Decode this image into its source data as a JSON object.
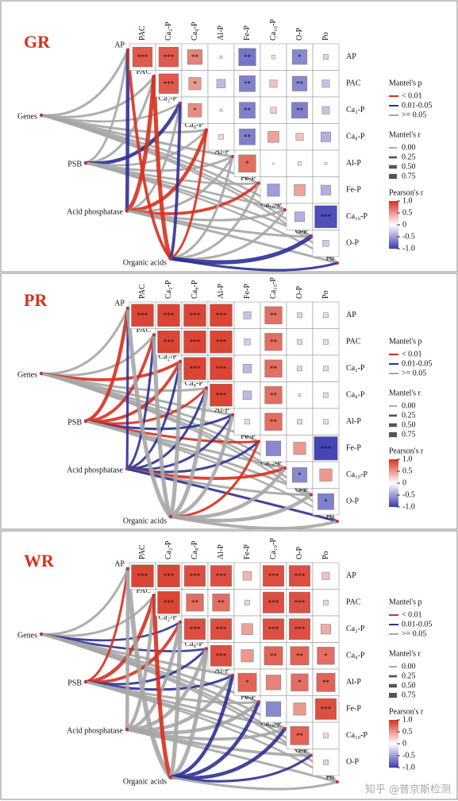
{
  "chart_data": [
    {
      "type": "mantel-heatmap",
      "title": "GR",
      "columns": [
        "PAC",
        "Ca₂-P",
        "Ca₈-P",
        "Al-P",
        "Fe-P",
        "Ca₁₀-P",
        "O-P",
        "Po"
      ],
      "rows": [
        "AP",
        "PAC",
        "Ca₂-P",
        "Ca₈-P",
        "Al-P",
        "Fe-P",
        "Ca₁₀-P",
        "O-P"
      ],
      "values": [
        [
          0.8,
          0.8,
          0.6,
          -0.1,
          -0.7,
          0.15,
          -0.6,
          -0.2
        ],
        [
          null,
          0.8,
          0.5,
          -0.35,
          -0.65,
          0.3,
          -0.6,
          -0.3
        ],
        [
          null,
          null,
          0.55,
          -0.1,
          -0.65,
          0.25,
          -0.65,
          -0.3
        ],
        [
          null,
          null,
          null,
          0.2,
          -0.65,
          0.45,
          0.3,
          -0.4
        ],
        [
          null,
          null,
          null,
          null,
          0.7,
          0.05,
          0.15,
          0.1
        ],
        [
          null,
          null,
          null,
          null,
          null,
          -0.5,
          0.45,
          -0.4
        ],
        [
          null,
          null,
          null,
          null,
          null,
          null,
          -0.4,
          -0.9
        ],
        [
          null,
          null,
          null,
          null,
          null,
          null,
          null,
          -0.25
        ]
      ],
      "stars": [
        [
          "***",
          "***",
          "**",
          null,
          "**",
          null,
          "*",
          null
        ],
        [
          null,
          "***",
          "*",
          null,
          "**",
          null,
          "**",
          null
        ],
        [
          null,
          null,
          "*",
          null,
          "**",
          null,
          "**",
          null
        ],
        [
          null,
          null,
          null,
          null,
          "**",
          null,
          null,
          null
        ],
        [
          null,
          null,
          null,
          null,
          "*",
          null,
          null,
          null
        ],
        [
          null,
          null,
          null,
          null,
          null,
          null,
          null,
          null
        ],
        [
          null,
          null,
          null,
          null,
          null,
          null,
          null,
          "***"
        ],
        [
          null,
          null,
          null,
          null,
          null,
          null,
          null,
          null
        ]
      ],
      "clim": [
        -1,
        1
      ],
      "colorbar_title": "Pearson's r",
      "colorbar_ticks": [
        {
          "value": 1,
          "label": "1.0"
        },
        0.5,
        0,
        -0.5,
        {
          "value": -1,
          "label": "-1.0"
        }
      ],
      "sources": [
        "Genes",
        "PSB",
        "Acid phosphatase",
        "Organic acids"
      ],
      "mantel_r": [
        [
          0.3,
          0.3,
          0.25,
          0.3,
          0.3,
          0.25,
          0.25,
          0.2,
          0.2
        ],
        [
          0.3,
          0.3,
          0.5,
          0.25,
          0.3,
          0.25,
          0.25,
          0.25,
          0.2
        ],
        [
          0.5,
          0.6,
          0.3,
          0.5,
          0.3,
          0.4,
          0.3,
          0.3,
          0.3
        ],
        [
          0.4,
          0.6,
          0.4,
          0.3,
          0.3,
          0.3,
          0.3,
          0.6,
          0.3
        ]
      ],
      "mantel_p": [
        [
          ">= 0.05",
          ">= 0.05",
          ">= 0.05",
          ">= 0.05",
          ">= 0.05",
          ">= 0.05",
          ">= 0.05",
          ">= 0.05",
          ">= 0.05"
        ],
        [
          ">= 0.05",
          ">= 0.05",
          "0.01-0.05",
          ">= 0.05",
          ">= 0.05",
          ">= 0.05",
          ">= 0.05",
          ">= 0.05",
          ">= 0.05"
        ],
        [
          "0.01-0.05",
          "< 0.01",
          ">= 0.05",
          "< 0.01",
          ">= 0.05",
          "< 0.01",
          ">= 0.05",
          ">= 0.05",
          ">= 0.05"
        ],
        [
          "< 0.01",
          "< 0.01",
          "0.01-0.05",
          "< 0.01",
          ">= 0.05",
          ">= 0.05",
          ">= 0.05",
          "0.01-0.05",
          "0.01-0.05"
        ]
      ],
      "p_legend": {
        "title": "Mantel's p",
        "entries": [
          {
            "label": "< 0.01",
            "color": "#d7301f"
          },
          {
            "label": "0.01-0.05",
            "color": "#2e3192"
          },
          {
            "label": ">= 0.05",
            "color": "#a6a6a6"
          }
        ]
      },
      "r_legend": {
        "title": "Mantel's r",
        "ticks": [
          {
            "value": 0,
            "label": "0.00"
          },
          0.25,
          {
            "value": 0.5,
            "label": "0.50"
          },
          0.75
        ]
      }
    },
    {
      "type": "mantel-heatmap",
      "title": "PR",
      "columns": [
        "PAC",
        "Ca₂-P",
        "Ca₈-P",
        "Al-P",
        "Fe-P",
        "Ca₁₀-P",
        "O-P",
        "Po"
      ],
      "rows": [
        "AP",
        "PAC",
        "Ca₂-P",
        "Ca₈-P",
        "Al-P",
        "Fe-P",
        "Ca₁₀-P",
        "O-P"
      ],
      "values": [
        [
          0.9,
          0.9,
          0.9,
          0.9,
          -0.3,
          0.7,
          -0.2,
          0.2
        ],
        [
          null,
          0.9,
          0.9,
          0.9,
          -0.25,
          0.7,
          -0.2,
          0.2
        ],
        [
          null,
          null,
          0.9,
          0.9,
          -0.35,
          0.7,
          -0.2,
          0.2
        ],
        [
          null,
          null,
          null,
          0.9,
          -0.35,
          0.7,
          -0.1,
          0.2
        ],
        [
          null,
          null,
          null,
          null,
          0.2,
          0.7,
          -0.2,
          0.2
        ],
        [
          null,
          null,
          null,
          null,
          null,
          -0.6,
          0.5,
          -0.95
        ],
        [
          null,
          null,
          null,
          null,
          null,
          null,
          -0.6,
          0.5
        ],
        [
          null,
          null,
          null,
          null,
          null,
          null,
          null,
          -0.65
        ]
      ],
      "stars": [
        [
          "***",
          "***",
          "***",
          "***",
          null,
          "**",
          null,
          null
        ],
        [
          null,
          "***",
          "***",
          "***",
          null,
          "**",
          null,
          null
        ],
        [
          null,
          null,
          "***",
          "***",
          null,
          "**",
          null,
          null
        ],
        [
          null,
          null,
          null,
          "***",
          null,
          "**",
          null,
          null
        ],
        [
          null,
          null,
          null,
          null,
          null,
          "**",
          null,
          null
        ],
        [
          null,
          null,
          null,
          null,
          null,
          null,
          null,
          "***"
        ],
        [
          null,
          null,
          null,
          null,
          null,
          null,
          "*",
          null
        ],
        [
          null,
          null,
          null,
          null,
          null,
          null,
          null,
          "*"
        ]
      ],
      "clim": [
        -1,
        1
      ],
      "colorbar_title": "Pearson's r",
      "colorbar_ticks": [
        {
          "value": 1,
          "label": "1.0"
        },
        0.5,
        0,
        -0.5,
        {
          "value": -1,
          "label": "-1.0"
        }
      ],
      "sources": [
        "Genes",
        "PSB",
        "Acid phosphatase",
        "Organic acids"
      ],
      "mantel_r": [
        [
          0.3,
          0.3,
          0.4,
          0.3,
          0.3,
          0.25,
          0.25,
          0.25,
          0.2
        ],
        [
          0.5,
          0.4,
          0.4,
          0.3,
          0.3,
          0.3,
          0.3,
          0.3,
          0.2
        ],
        [
          0.3,
          0.3,
          0.3,
          0.3,
          0.3,
          0.3,
          0.4,
          0.3,
          0.3
        ],
        [
          0.6,
          0.6,
          0.6,
          0.6,
          0.5,
          0.3,
          0.5,
          0.5,
          0.4
        ]
      ],
      "mantel_p": [
        [
          ">= 0.05",
          ">= 0.05",
          "< 0.01",
          ">= 0.05",
          ">= 0.05",
          ">= 0.05",
          ">= 0.05",
          ">= 0.05",
          ">= 0.05"
        ],
        [
          "< 0.01",
          "< 0.01",
          "< 0.01",
          "< 0.01",
          "0.01-0.05",
          "< 0.01",
          ">= 0.05",
          ">= 0.05",
          ">= 0.05"
        ],
        [
          "0.01-0.05",
          "0.01-0.05",
          "0.01-0.05",
          "0.01-0.05",
          "0.01-0.05",
          "0.01-0.05",
          "< 0.01",
          ">= 0.05",
          "0.01-0.05"
        ],
        [
          ">= 0.05",
          ">= 0.05",
          ">= 0.05",
          ">= 0.05",
          ">= 0.05",
          "< 0.01",
          ">= 0.05",
          ">= 0.05",
          ">= 0.05"
        ]
      ],
      "p_legend": {
        "title": "Mantel's p",
        "entries": [
          {
            "label": "< 0.01",
            "color": "#d7301f"
          },
          {
            "label": "0.01-0.05",
            "color": "#2e3192"
          },
          {
            "label": ">= 0.05",
            "color": "#a6a6a6"
          }
        ]
      },
      "r_legend": {
        "title": "Mantel's r",
        "ticks": [
          {
            "value": 0,
            "label": "0.00"
          },
          0.25,
          {
            "value": 0.5,
            "label": "0.50"
          },
          0.75
        ]
      }
    },
    {
      "type": "mantel-heatmap",
      "title": "WR",
      "columns": [
        "PAC",
        "Ca₂-P",
        "Ca₈-P",
        "Al-P",
        "Fe-P",
        "Ca₁₀-P",
        "O-P",
        "Po"
      ],
      "rows": [
        "AP",
        "PAC",
        "Ca₂-P",
        "Ca₈-P",
        "Al-P",
        "Fe-P",
        "Ca₁₀-P",
        "O-P"
      ],
      "values": [
        [
          0.9,
          0.9,
          0.85,
          0.85,
          0.35,
          0.85,
          0.85,
          0.3
        ],
        [
          null,
          0.9,
          0.7,
          0.7,
          -0.2,
          0.85,
          0.85,
          -0.2
        ],
        [
          null,
          null,
          0.85,
          0.85,
          0.45,
          0.85,
          0.85,
          0.4
        ],
        [
          null,
          null,
          null,
          0.85,
          0.5,
          0.75,
          0.75,
          0.7
        ],
        [
          null,
          null,
          null,
          null,
          0.75,
          0.6,
          0.7,
          0.75
        ],
        [
          null,
          null,
          null,
          null,
          null,
          -0.6,
          0.5,
          0.85
        ],
        [
          null,
          null,
          null,
          null,
          null,
          null,
          0.75,
          0.2
        ],
        [
          null,
          null,
          null,
          null,
          null,
          null,
          null,
          -0.2
        ]
      ],
      "stars": [
        [
          "***",
          "***",
          "***",
          "***",
          null,
          "***",
          "***",
          null
        ],
        [
          null,
          "***",
          "**",
          "**",
          null,
          "***",
          "***",
          null
        ],
        [
          null,
          null,
          "***",
          "***",
          null,
          "***",
          "***",
          null
        ],
        [
          null,
          null,
          null,
          "***",
          null,
          "**",
          "**",
          "*"
        ],
        [
          null,
          null,
          null,
          null,
          "*",
          null,
          "*",
          "**"
        ],
        [
          null,
          null,
          null,
          null,
          null,
          null,
          null,
          "***"
        ],
        [
          null,
          null,
          null,
          null,
          null,
          null,
          "**",
          null
        ],
        [
          null,
          null,
          null,
          null,
          null,
          null,
          null,
          null
        ]
      ],
      "clim": [
        -1,
        1
      ],
      "colorbar_title": "Pearson's r",
      "colorbar_ticks": [
        {
          "value": 1,
          "label": "1.0"
        },
        0.5,
        0,
        -0.5,
        {
          "value": -1,
          "label": "-1.0"
        }
      ],
      "sources": [
        "Genes",
        "PSB",
        "Acid phosphatase",
        "Organic acids"
      ],
      "mantel_r": [
        [
          0.3,
          0.3,
          0.25,
          0.25,
          0.3,
          0.3,
          0.3,
          0.25,
          0.25
        ],
        [
          0.3,
          0.5,
          0.4,
          0.3,
          0.3,
          0.3,
          0.3,
          0.25,
          0.25
        ],
        [
          0.5,
          0.5,
          0.5,
          0.5,
          0.5,
          0.5,
          0.4,
          0.4,
          0.3
        ],
        [
          0.7,
          0.6,
          0.6,
          0.6,
          0.5,
          0.5,
          0.5,
          0.3,
          0.3
        ]
      ],
      "mantel_p": [
        [
          ">= 0.05",
          ">= 0.05",
          "0.01-0.05",
          "0.01-0.05",
          ">= 0.05",
          ">= 0.05",
          ">= 0.05",
          ">= 0.05",
          ">= 0.05"
        ],
        [
          "< 0.01",
          "< 0.01",
          "< 0.01",
          "0.01-0.05",
          "0.01-0.05",
          ">= 0.05",
          ">= 0.05",
          ">= 0.05",
          ">= 0.05"
        ],
        [
          ">= 0.05",
          ">= 0.05",
          ">= 0.05",
          ">= 0.05",
          ">= 0.05",
          ">= 0.05",
          ">= 0.05",
          ">= 0.05",
          ">= 0.05"
        ],
        [
          ">= 0.05",
          "< 0.01",
          ">= 0.05",
          ">= 0.05",
          "0.01-0.05",
          "0.01-0.05",
          "0.01-0.05",
          "0.01-0.05",
          ">= 0.05"
        ]
      ],
      "p_legend": {
        "title": "Mantel's p",
        "entries": [
          {
            "label": "< 0.01",
            "color": "#d7301f"
          },
          {
            "label": "0.01-0.05",
            "color": "#2e3192"
          },
          {
            "label": ">= 0.05",
            "color": "#a6a6a6"
          }
        ]
      },
      "r_legend": {
        "title": "Mantel's r",
        "ticks": [
          {
            "value": 0,
            "label": "0.00"
          },
          0.25,
          {
            "value": 0.5,
            "label": "0.50"
          },
          0.75
        ]
      }
    }
  ],
  "watermark": "知乎 @普奈斯检测"
}
